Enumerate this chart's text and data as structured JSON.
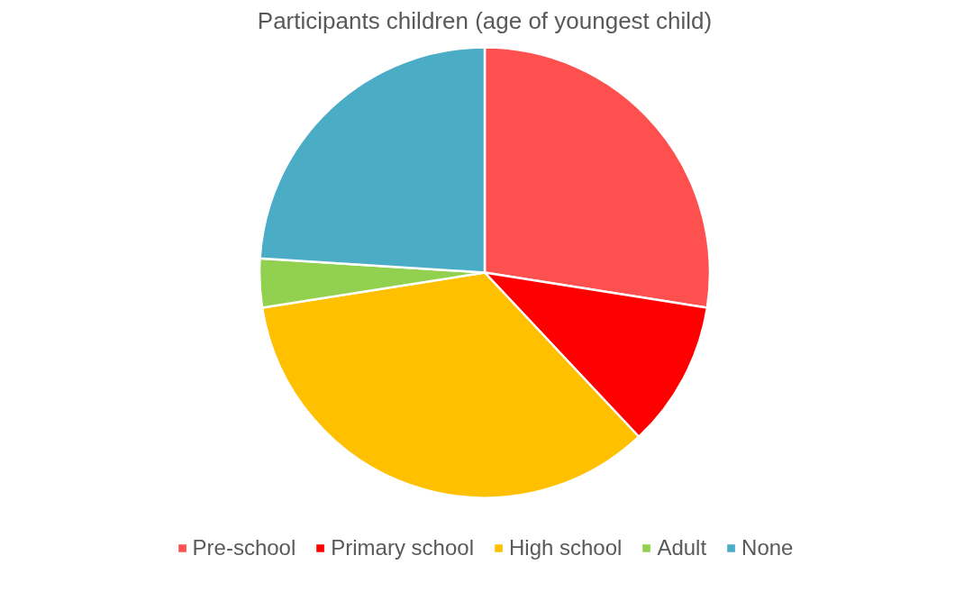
{
  "chart_data": {
    "type": "pie",
    "title": "Participants children (age of youngest child)",
    "categories": [
      "Pre-school",
      "Primary school",
      "High school",
      "Adult",
      "None"
    ],
    "values": [
      27.5,
      10.5,
      34.5,
      3.5,
      24
    ],
    "colors": [
      "#ff5050",
      "#ff0000",
      "#ffc000",
      "#92d050",
      "#4bacc6"
    ],
    "legend": "bottom"
  }
}
